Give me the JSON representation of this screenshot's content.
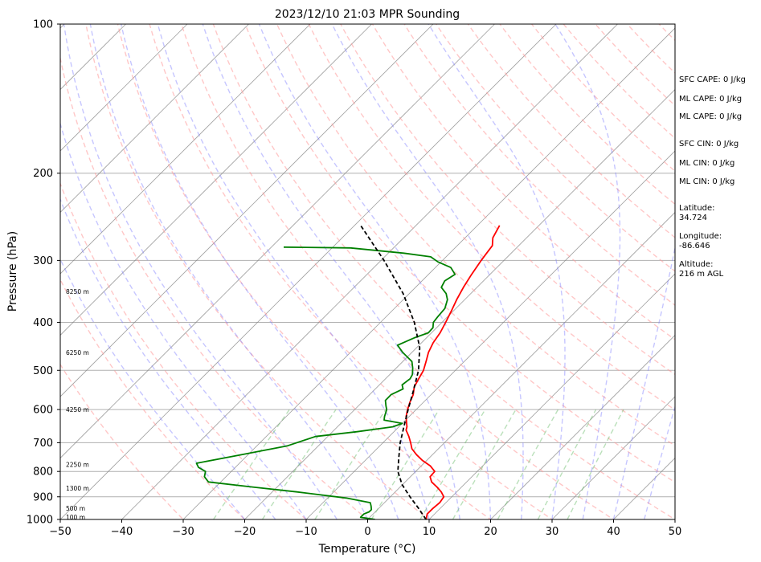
{
  "chart_data": {
    "type": "skew-t",
    "title": "2023/12/10 21:03 MPR Sounding",
    "xlabel": "Temperature (°C)",
    "ylabel": "Pressure (hPa)",
    "xlim": [
      -50,
      50
    ],
    "ylim": [
      1000,
      100
    ],
    "x_ticks": [
      "−50",
      "−40",
      "−30",
      "−20",
      "−10",
      "0",
      "10",
      "20",
      "30",
      "40",
      "50"
    ],
    "y_ticks": [
      "100",
      "200",
      "300",
      "400",
      "500",
      "600",
      "700",
      "800",
      "900",
      "1000"
    ],
    "y_tick_values": [
      100,
      200,
      300,
      400,
      500,
      600,
      700,
      800,
      900,
      1000
    ],
    "grid": true,
    "series": [
      {
        "color": "#ff0000",
        "style": "solid",
        "points": [
          [
            1000,
            9.5
          ],
          [
            975,
            8.8
          ],
          [
            950,
            8.8
          ],
          [
            925,
            9.0
          ],
          [
            900,
            8.7
          ],
          [
            880,
            7.5
          ],
          [
            860,
            6.0
          ],
          [
            840,
            4.3
          ],
          [
            820,
            3.2
          ],
          [
            800,
            3.1
          ],
          [
            780,
            1.5
          ],
          [
            760,
            -0.7
          ],
          [
            740,
            -2.6
          ],
          [
            720,
            -4.3
          ],
          [
            700,
            -5.5
          ],
          [
            680,
            -6.8
          ],
          [
            660,
            -8.3
          ],
          [
            650,
            -8.7
          ],
          [
            620,
            -10.5
          ],
          [
            600,
            -11.4
          ],
          [
            580,
            -12.2
          ],
          [
            560,
            -12.9
          ],
          [
            540,
            -14.0
          ],
          [
            520,
            -14.6
          ],
          [
            500,
            -15.2
          ],
          [
            480,
            -16.2
          ],
          [
            460,
            -17.3
          ],
          [
            440,
            -18.1
          ],
          [
            420,
            -18.6
          ],
          [
            400,
            -19.4
          ],
          [
            380,
            -20.3
          ],
          [
            360,
            -21.3
          ],
          [
            340,
            -22.2
          ],
          [
            320,
            -23.0
          ],
          [
            300,
            -23.7
          ],
          [
            290,
            -24.0
          ],
          [
            280,
            -24.3
          ],
          [
            270,
            -25.5
          ],
          [
            255,
            -26.4
          ]
        ]
      },
      {
        "color": "#008000",
        "style": "solid",
        "points": [
          [
            1000,
            1.2
          ],
          [
            990,
            -1.5
          ],
          [
            975,
            -1.5
          ],
          [
            965,
            -1.0
          ],
          [
            955,
            -1.0
          ],
          [
            940,
            -1.6
          ],
          [
            925,
            -2.3
          ],
          [
            905,
            -7.0
          ],
          [
            880,
            -16.0
          ],
          [
            860,
            -24.0
          ],
          [
            840,
            -32.0
          ],
          [
            820,
            -33.5
          ],
          [
            800,
            -34.2
          ],
          [
            785,
            -36.0
          ],
          [
            770,
            -37.0
          ],
          [
            740,
            -31.0
          ],
          [
            710,
            -25.0
          ],
          [
            680,
            -22.0
          ],
          [
            665,
            -16.0
          ],
          [
            650,
            -11.0
          ],
          [
            640,
            -10.0
          ],
          [
            630,
            -13.5
          ],
          [
            620,
            -14.0
          ],
          [
            600,
            -14.8
          ],
          [
            590,
            -15.5
          ],
          [
            575,
            -16.5
          ],
          [
            560,
            -16.5
          ],
          [
            545,
            -15.5
          ],
          [
            535,
            -16.3
          ],
          [
            520,
            -16.0
          ],
          [
            510,
            -16.3
          ],
          [
            495,
            -17.3
          ],
          [
            480,
            -18.5
          ],
          [
            460,
            -21.5
          ],
          [
            445,
            -23.5
          ],
          [
            430,
            -22.0
          ],
          [
            420,
            -20.5
          ],
          [
            410,
            -20.6
          ],
          [
            400,
            -21.4
          ],
          [
            390,
            -21.6
          ],
          [
            375,
            -21.8
          ],
          [
            360,
            -22.8
          ],
          [
            350,
            -24.0
          ],
          [
            340,
            -25.8
          ],
          [
            330,
            -26.3
          ],
          [
            320,
            -25.7
          ],
          [
            310,
            -27.5
          ],
          [
            302,
            -30.5
          ],
          [
            295,
            -32.5
          ],
          [
            290,
            -37.5
          ],
          [
            283,
            -47.0
          ],
          [
            282,
            -58.0
          ]
        ]
      },
      {
        "color": "#000000",
        "style": "dashed",
        "points": [
          [
            1000,
            9.5
          ],
          [
            950,
            6.5
          ],
          [
            900,
            3.2
          ],
          [
            850,
            -0.1
          ],
          [
            800,
            -2.9
          ],
          [
            750,
            -5.0
          ],
          [
            700,
            -7.2
          ],
          [
            650,
            -9.2
          ],
          [
            600,
            -11.3
          ],
          [
            550,
            -13.5
          ],
          [
            500,
            -16.0
          ],
          [
            450,
            -19.5
          ],
          [
            400,
            -24.5
          ],
          [
            350,
            -31.0
          ],
          [
            300,
            -39.5
          ],
          [
            255,
            -49.0
          ]
        ]
      }
    ],
    "background_lines": {
      "isotherms_color": "#808080",
      "dry_adiabats_color": "#ff9999",
      "moist_adiabats_color": "#8080ff",
      "mixing_ratio_color": "#66bb66"
    },
    "height_labels": [
      {
        "text": "100 m",
        "p": 991
      },
      {
        "text": "500 m",
        "p": 950
      },
      {
        "text": "1300 m",
        "p": 866
      },
      {
        "text": "2250 m",
        "p": 776
      },
      {
        "text": "4250 m",
        "p": 601
      },
      {
        "text": "6250 m",
        "p": 461
      },
      {
        "text": "8250 m",
        "p": 347
      }
    ],
    "annotations": [
      "SFC CAPE: 0 J/kg",
      "ML CAPE: 0 J/kg",
      "ML CAPE: 0 J/kg",
      "SFC CIN: 0 J/kg",
      "ML CIN: 0 J/kg",
      "ML CIN: 0 J/kg",
      "Latitude:",
      "34.724",
      "Longitude:",
      "-86.646",
      "Altitude:",
      "216 m AGL"
    ]
  }
}
